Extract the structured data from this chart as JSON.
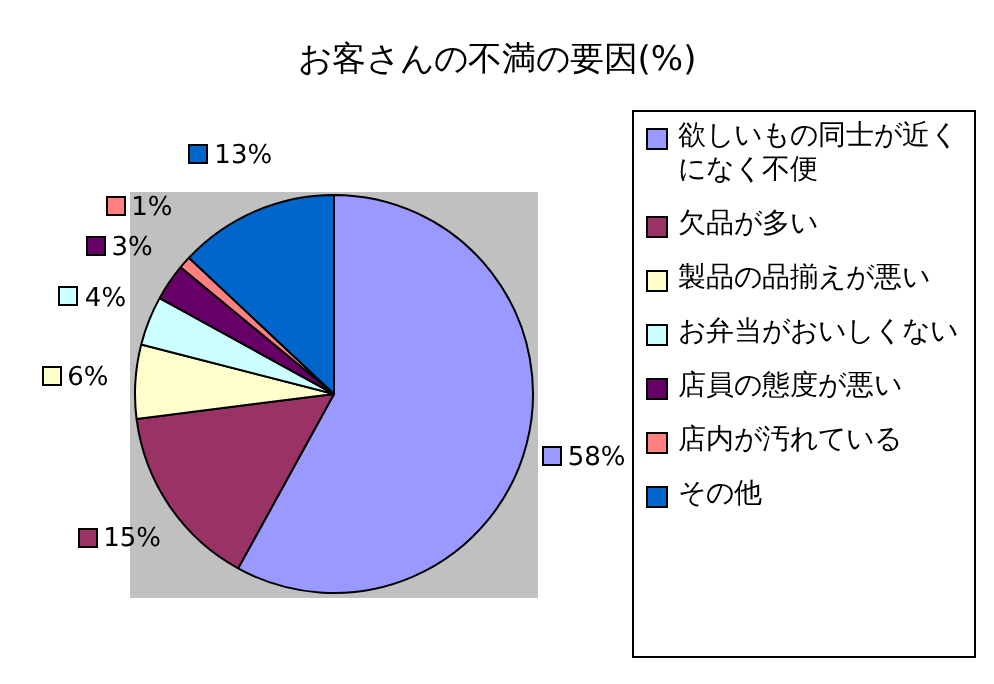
{
  "chart_data": {
    "type": "pie",
    "title": "お客さんの不満の要因(%)",
    "categories": [
      "欲しいもの同士が近くになく不便",
      "欠品が多い",
      "製品の品揃えが悪い",
      "お弁当がおいしくない",
      "店員の態度が悪い",
      "店内が汚れている",
      "その他"
    ],
    "values": [
      58,
      15,
      6,
      4,
      3,
      1,
      13
    ],
    "value_labels": [
      "58%",
      "15%",
      "6%",
      "4%",
      "3%",
      "1%",
      "13%"
    ],
    "colors": [
      "#9999ff",
      "#993366",
      "#ffffcc",
      "#ccffff",
      "#660066",
      "#ff8080",
      "#0066cc"
    ],
    "legend": "right"
  }
}
